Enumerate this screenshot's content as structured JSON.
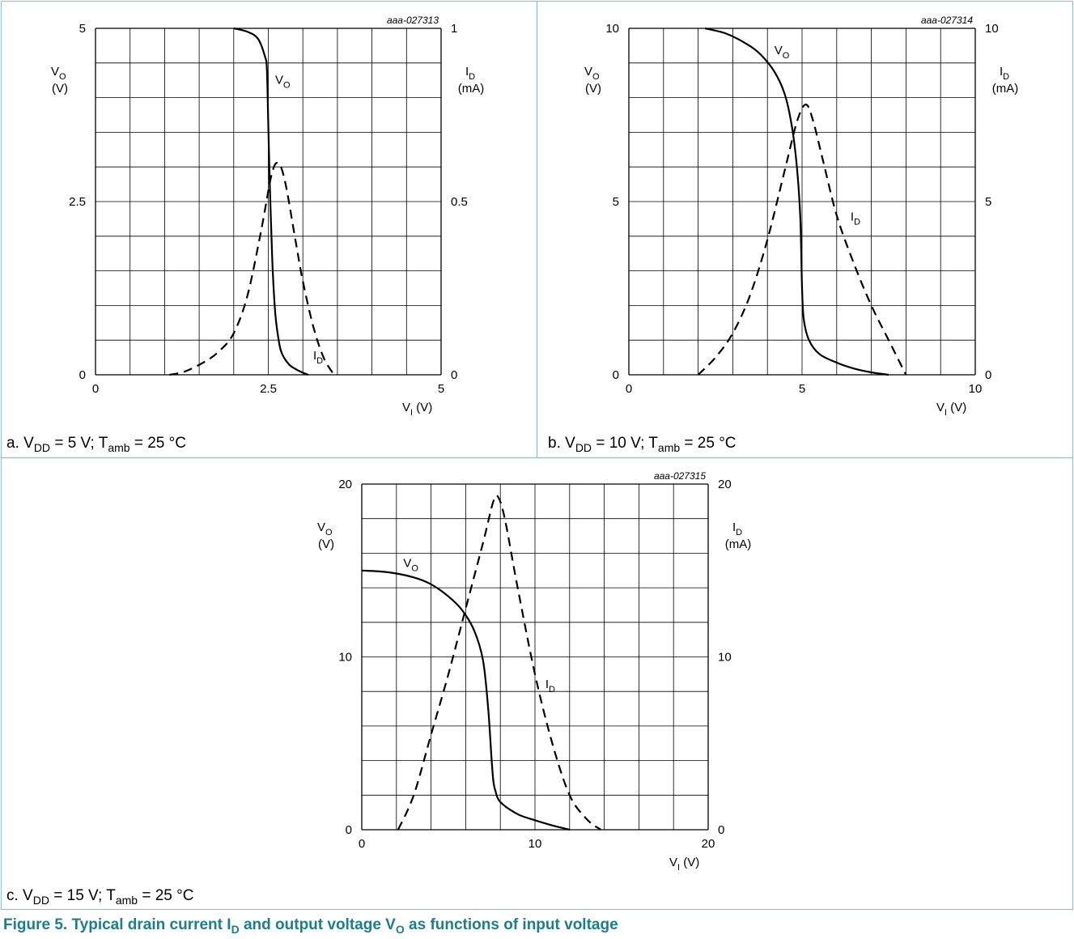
{
  "figure": {
    "title_prefix": "Figure 5.  Typical drain current I",
    "title_sub1": "D",
    "title_mid": " and output voltage V",
    "title_sub2": "O",
    "title_suffix": " as functions of input voltage",
    "title_color": "#1a7f8c"
  },
  "colors": {
    "border": "#8fc3c9",
    "grid": "#000000",
    "curve": "#000000"
  },
  "chart_data": [
    {
      "type": "line",
      "id": "aaa-027313",
      "caption": {
        "prefix": "a. V",
        "sub1": "DD",
        "mid": " = 5 V; T",
        "sub2": "amb",
        "suffix": " = 25 °C"
      },
      "x_axis": {
        "range": [
          0,
          5
        ],
        "ticks": [
          "0",
          "2.5",
          "5"
        ],
        "label": "V",
        "label_sub": "I",
        "label_unit": " (V)"
      },
      "y_left": {
        "range": [
          0,
          5
        ],
        "ticks": [
          "0",
          "2.5",
          "5"
        ],
        "label": "V",
        "label_sub": "O",
        "label_unit": "(V)"
      },
      "y_right": {
        "range": [
          0,
          1
        ],
        "ticks": [
          "0",
          "0.5",
          "1"
        ],
        "label": "I",
        "label_sub": "D",
        "label_unit": "(mA)"
      },
      "grid": true,
      "series": [
        {
          "name": "VO",
          "style": "solid",
          "axis": "left",
          "x": [
            2.0,
            2.2,
            2.35,
            2.45,
            2.48,
            2.5,
            2.52,
            2.56,
            2.6,
            2.65,
            2.7,
            2.8,
            2.9,
            3.0,
            3.08
          ],
          "y": [
            5.0,
            4.95,
            4.85,
            4.6,
            4.4,
            3.6,
            2.8,
            1.6,
            0.9,
            0.5,
            0.3,
            0.15,
            0.08,
            0.03,
            0.0
          ]
        },
        {
          "name": "ID",
          "style": "dashed",
          "axis": "right",
          "x": [
            1.07,
            1.3,
            1.6,
            1.8,
            2.0,
            2.2,
            2.4,
            2.55,
            2.65,
            2.75,
            2.9,
            3.0,
            3.15,
            3.3,
            3.45
          ],
          "y": [
            0.0,
            0.01,
            0.04,
            0.07,
            0.12,
            0.23,
            0.42,
            0.58,
            0.61,
            0.55,
            0.38,
            0.27,
            0.14,
            0.05,
            0.0
          ]
        }
      ],
      "annotations": [
        {
          "series": "VO",
          "text": "V",
          "sub": "O",
          "at": [
            2.6,
            4.2
          ]
        },
        {
          "series": "ID",
          "text": "I",
          "sub": "D",
          "at": [
            3.15,
            0.22
          ]
        }
      ]
    },
    {
      "type": "line",
      "id": "aaa-027314",
      "caption": {
        "prefix": "b. V",
        "sub1": "DD",
        "mid": " = 10 V; T",
        "sub2": "amb",
        "suffix": " = 25 °C"
      },
      "x_axis": {
        "range": [
          0,
          10
        ],
        "ticks": [
          "0",
          "5",
          "10"
        ],
        "label": "V",
        "label_sub": "I",
        "label_unit": " (V)"
      },
      "y_left": {
        "range": [
          0,
          10
        ],
        "ticks": [
          "0",
          "5",
          "10"
        ],
        "label": "V",
        "label_sub": "O",
        "label_unit": "(V)"
      },
      "y_right": {
        "range": [
          0,
          10
        ],
        "ticks": [
          "0",
          "5",
          "10"
        ],
        "label": "I",
        "label_sub": "D",
        "label_unit": "(mA)"
      },
      "grid": true,
      "series": [
        {
          "name": "VO",
          "style": "solid",
          "axis": "left",
          "x": [
            2.2,
            2.8,
            3.4,
            3.8,
            4.2,
            4.5,
            4.7,
            4.85,
            4.95,
            5.0,
            5.05,
            5.2,
            5.5,
            6.0,
            6.5,
            7.0,
            7.5
          ],
          "y": [
            10.0,
            9.85,
            9.55,
            9.25,
            8.75,
            8.1,
            7.2,
            6.0,
            4.5,
            2.5,
            1.6,
            1.0,
            0.6,
            0.35,
            0.18,
            0.07,
            0.0
          ]
        },
        {
          "name": "ID",
          "style": "dashed",
          "axis": "right",
          "x": [
            2.0,
            2.5,
            3.0,
            3.5,
            4.0,
            4.5,
            4.85,
            5.1,
            5.3,
            5.6,
            6.0,
            6.5,
            7.0,
            7.5,
            8.0
          ],
          "y": [
            0.0,
            0.5,
            1.2,
            2.3,
            3.9,
            5.9,
            7.3,
            7.8,
            7.4,
            6.2,
            4.6,
            3.2,
            2.0,
            1.0,
            0.0
          ]
        }
      ],
      "annotations": [
        {
          "series": "VO",
          "text": "V",
          "sub": "O",
          "at": [
            4.2,
            9.25
          ]
        },
        {
          "series": "ID",
          "text": "I",
          "sub": "D",
          "at": [
            6.4,
            4.45
          ]
        }
      ]
    },
    {
      "type": "line",
      "id": "aaa-027315",
      "caption": {
        "prefix": "c. V",
        "sub1": "DD",
        "mid": " = 15 V; T",
        "sub2": "amb",
        "suffix": " = 25 °C"
      },
      "x_axis": {
        "range": [
          0,
          20
        ],
        "ticks": [
          "0",
          "10",
          "20"
        ],
        "label": "V",
        "label_sub": "I",
        "label_unit": " (V)"
      },
      "y_left": {
        "range": [
          0,
          20
        ],
        "ticks": [
          "0",
          "10",
          "20"
        ],
        "label": "V",
        "label_sub": "O",
        "label_unit": "(V)"
      },
      "y_right": {
        "range": [
          0,
          20
        ],
        "ticks": [
          "0",
          "10",
          "20"
        ],
        "label": "I",
        "label_sub": "D",
        "label_unit": "(mA)"
      },
      "grid": true,
      "series": [
        {
          "name": "VO",
          "style": "solid",
          "axis": "left",
          "x": [
            0.0,
            1.5,
            3.0,
            4.0,
            5.0,
            5.8,
            6.5,
            7.0,
            7.3,
            7.5,
            7.6,
            7.7,
            8.0,
            9.0,
            10.0,
            11.0,
            12.0
          ],
          "y": [
            15.0,
            14.9,
            14.6,
            14.2,
            13.5,
            12.7,
            11.5,
            9.8,
            7.0,
            4.0,
            2.8,
            2.3,
            1.6,
            0.9,
            0.55,
            0.25,
            0.0
          ]
        },
        {
          "name": "ID",
          "style": "dashed",
          "axis": "right",
          "x": [
            2.1,
            3.0,
            4.0,
            5.0,
            6.0,
            7.0,
            7.6,
            7.9,
            8.3,
            9.0,
            10.0,
            11.0,
            12.0,
            13.0,
            13.8
          ],
          "y": [
            0.0,
            2.0,
            5.5,
            9.0,
            12.8,
            16.6,
            19.0,
            19.2,
            17.8,
            14.0,
            9.0,
            5.0,
            2.0,
            0.6,
            0.0
          ]
        }
      ],
      "annotations": [
        {
          "series": "VO",
          "text": "V",
          "sub": "O",
          "at": [
            2.4,
            15.2
          ]
        },
        {
          "series": "ID",
          "text": "I",
          "sub": "D",
          "at": [
            10.6,
            8.2
          ]
        }
      ]
    }
  ]
}
